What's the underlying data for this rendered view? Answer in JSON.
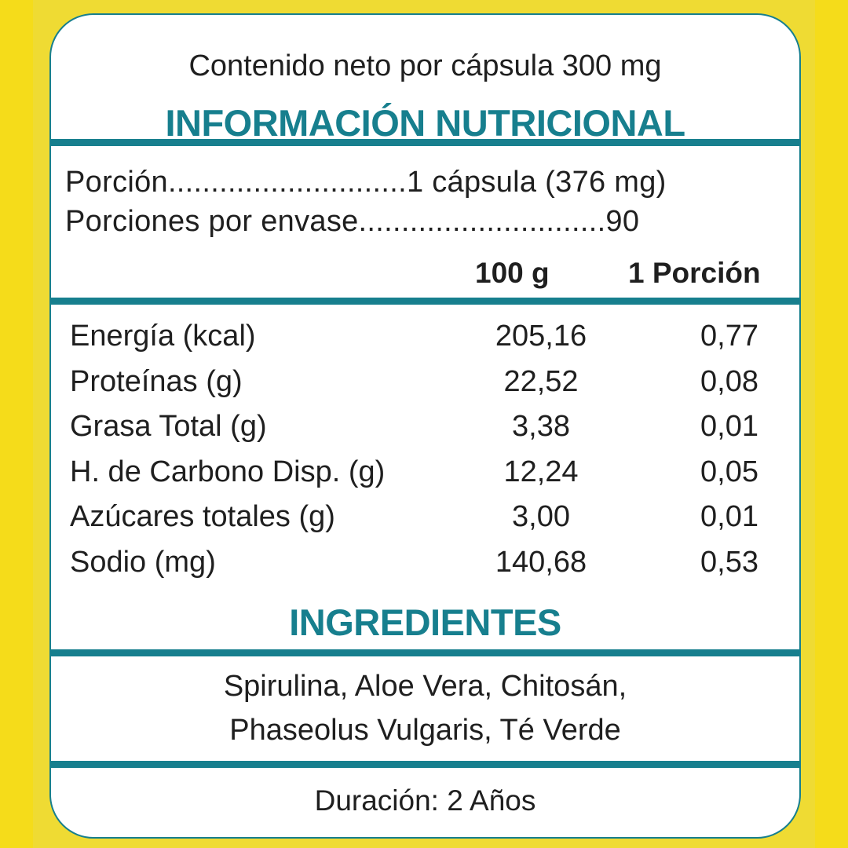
{
  "header": {
    "net_content": "Contenido neto por cápsula 300 mg",
    "title": "INFORMACIÓN NUTRICIONAL"
  },
  "serving": {
    "portion": "Porción............................1 cápsula (376 mg)",
    "portions_per_container": "Porciones por envase.............................90"
  },
  "table": {
    "columns": [
      "100 g",
      "1 Porción"
    ],
    "rows": [
      {
        "label": "Energía (kcal)",
        "per_100g": "205,16",
        "per_portion": "0,77"
      },
      {
        "label": "Proteínas (g)",
        "per_100g": "22,52",
        "per_portion": "0,08"
      },
      {
        "label": "Grasa Total (g)",
        "per_100g": "3,38",
        "per_portion": "0,01"
      },
      {
        "label": "H. de Carbono Disp. (g)",
        "per_100g": "12,24",
        "per_portion": "0,05"
      },
      {
        "label": "Azúcares totales (g)",
        "per_100g": "3,00",
        "per_portion": "0,01"
      },
      {
        "label": "Sodio (mg)",
        "per_100g": "140,68",
        "per_portion": "0,53"
      }
    ]
  },
  "ingredients": {
    "title": "INGREDIENTES",
    "line1": "Spirulina, Aloe Vera, Chitosán,",
    "line2": "Phaseolus Vulgaris, Té Verde"
  },
  "footer": {
    "duration": "Duración: 2 Años"
  },
  "colors": {
    "accent": "#177f8e",
    "background": "#efdb33",
    "edge": "#f5dc1a"
  }
}
